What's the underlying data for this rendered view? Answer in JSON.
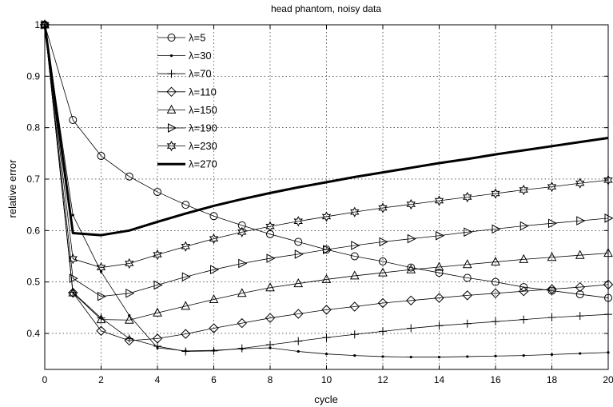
{
  "chart_data": {
    "type": "line",
    "title": "head phantom, noisy data",
    "xlabel": "cycle",
    "ylabel": "relative error",
    "xlim": [
      0,
      20
    ],
    "ylim": [
      0.33,
      1.0
    ],
    "xticks": [
      0,
      2,
      4,
      6,
      8,
      10,
      12,
      14,
      16,
      18,
      20
    ],
    "yticks": [
      0.4,
      0.5,
      0.6,
      0.7,
      0.8,
      0.9,
      1
    ],
    "xtick_labels": [
      "0",
      "2",
      "4",
      "6",
      "8",
      "10",
      "12",
      "14",
      "16",
      "18",
      "20"
    ],
    "ytick_labels": [
      "0.4",
      "0.5",
      "0.6",
      "0.7",
      "0.8",
      "0.9",
      "1"
    ],
    "grid": true,
    "legend_position": "top-left",
    "x": [
      0,
      1,
      2,
      3,
      4,
      5,
      6,
      7,
      8,
      9,
      10,
      11,
      12,
      13,
      14,
      15,
      16,
      17,
      18,
      19,
      20
    ],
    "series": [
      {
        "name": "λ=5",
        "marker": "circle",
        "values": [
          1.0,
          0.815,
          0.745,
          0.705,
          0.675,
          0.65,
          0.628,
          0.61,
          0.593,
          0.578,
          0.563,
          0.55,
          0.54,
          0.528,
          0.518,
          0.508,
          0.5,
          0.49,
          0.483,
          0.476,
          0.469
        ]
      },
      {
        "name": "λ=30",
        "marker": "dot",
        "values": [
          1.0,
          0.63,
          0.52,
          0.435,
          0.372,
          0.366,
          0.367,
          0.37,
          0.372,
          0.365,
          0.36,
          0.357,
          0.355,
          0.354,
          0.354,
          0.355,
          0.356,
          0.357,
          0.359,
          0.361,
          0.363
        ]
      },
      {
        "name": "λ=70",
        "marker": "plus",
        "values": [
          1.0,
          0.48,
          0.43,
          0.39,
          0.375,
          0.365,
          0.366,
          0.371,
          0.378,
          0.385,
          0.392,
          0.398,
          0.404,
          0.41,
          0.415,
          0.419,
          0.423,
          0.427,
          0.431,
          0.434,
          0.437
        ]
      },
      {
        "name": "λ=110",
        "marker": "diamond",
        "values": [
          1.0,
          0.479,
          0.405,
          0.386,
          0.39,
          0.399,
          0.41,
          0.42,
          0.43,
          0.438,
          0.446,
          0.452,
          0.459,
          0.464,
          0.469,
          0.474,
          0.478,
          0.482,
          0.486,
          0.49,
          0.495
        ]
      },
      {
        "name": "λ=150",
        "marker": "triangle-up",
        "values": [
          1.0,
          0.479,
          0.427,
          0.426,
          0.44,
          0.453,
          0.466,
          0.478,
          0.489,
          0.497,
          0.505,
          0.512,
          0.518,
          0.524,
          0.529,
          0.534,
          0.539,
          0.544,
          0.548,
          0.552,
          0.556
        ]
      },
      {
        "name": "λ=190",
        "marker": "triangle-right",
        "values": [
          1.0,
          0.507,
          0.472,
          0.478,
          0.494,
          0.51,
          0.524,
          0.536,
          0.546,
          0.554,
          0.563,
          0.571,
          0.578,
          0.584,
          0.59,
          0.597,
          0.603,
          0.609,
          0.614,
          0.619,
          0.624
        ]
      },
      {
        "name": "λ=230",
        "marker": "star",
        "values": [
          1.0,
          0.545,
          0.528,
          0.536,
          0.553,
          0.569,
          0.584,
          0.597,
          0.608,
          0.618,
          0.627,
          0.636,
          0.644,
          0.651,
          0.658,
          0.665,
          0.672,
          0.679,
          0.685,
          0.692,
          0.698
        ]
      },
      {
        "name": "λ=270",
        "marker": "none",
        "bold": true,
        "values": [
          1.0,
          0.595,
          0.591,
          0.6,
          0.617,
          0.633,
          0.648,
          0.661,
          0.673,
          0.684,
          0.694,
          0.704,
          0.713,
          0.722,
          0.731,
          0.739,
          0.748,
          0.756,
          0.764,
          0.772,
          0.78
        ]
      }
    ]
  }
}
